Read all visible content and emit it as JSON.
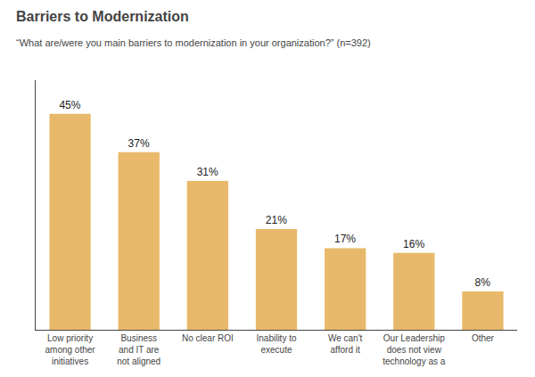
{
  "chart_data": {
    "type": "bar",
    "title": "Barriers to Modernization",
    "subtitle": "“What are/were you main barriers to modernization in your organization?” (n=392)",
    "categories": [
      "Low priority\namong other\ninitiatives",
      "Business\nand IT are\nnot aligned",
      "No clear ROI",
      "Inability to\nexecute",
      "We can't\nafford it",
      "Our Leadership\ndoes not view\ntechnology as a",
      "Other"
    ],
    "values": [
      45,
      37,
      31,
      21,
      17,
      16,
      8
    ],
    "value_labels": [
      "45%",
      "37%",
      "31%",
      "21%",
      "17%",
      "16%",
      "8%"
    ],
    "data_labels": true,
    "color": "#E8B96A",
    "ylim": [
      0,
      52
    ],
    "grid": false,
    "tick_labels": "x"
  }
}
